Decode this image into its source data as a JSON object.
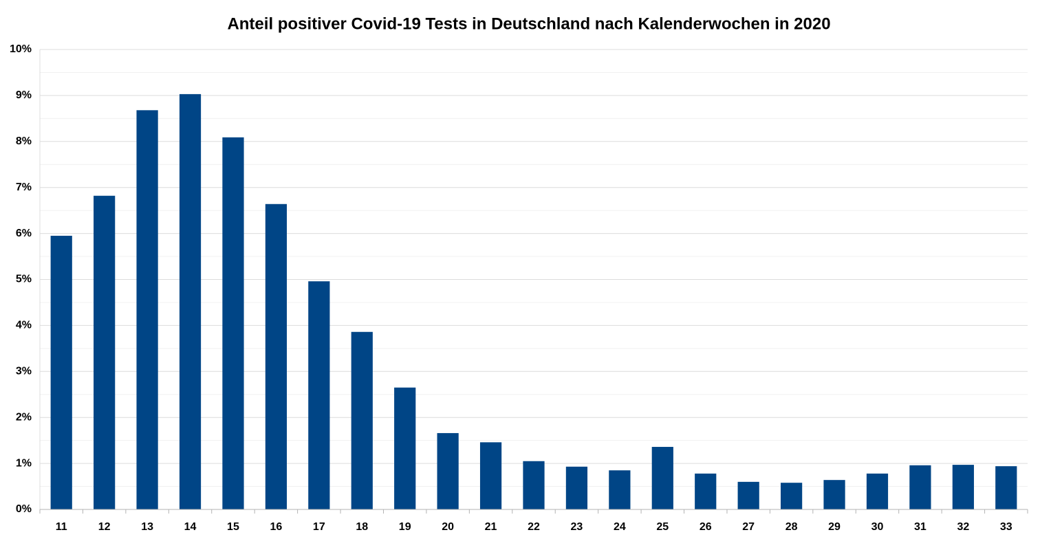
{
  "chart_data": {
    "type": "bar",
    "title": "Anteil positiver Covid-19 Tests in Deutschland nach Kalenderwochen in 2020",
    "categories": [
      "11",
      "12",
      "13",
      "14",
      "15",
      "16",
      "17",
      "18",
      "19",
      "20",
      "21",
      "22",
      "23",
      "24",
      "25",
      "26",
      "27",
      "28",
      "29",
      "30",
      "31",
      "32",
      "33"
    ],
    "values": [
      5.95,
      6.82,
      8.68,
      9.03,
      8.09,
      6.64,
      4.96,
      3.86,
      2.65,
      1.66,
      1.46,
      1.05,
      0.93,
      0.85,
      1.36,
      0.78,
      0.6,
      0.58,
      0.64,
      0.78,
      0.96,
      0.97,
      0.94
    ],
    "color": "#004586",
    "ylim": [
      0,
      10
    ],
    "yticks": [
      {
        "value": 0,
        "label": "0%"
      },
      {
        "value": 1,
        "label": "1%"
      },
      {
        "value": 2,
        "label": "2%"
      },
      {
        "value": 3,
        "label": "3%"
      },
      {
        "value": 4,
        "label": "4%"
      },
      {
        "value": 5,
        "label": "5%"
      },
      {
        "value": 6,
        "label": "6%"
      },
      {
        "value": 7,
        "label": "7%"
      },
      {
        "value": 8,
        "label": "8%"
      },
      {
        "value": 9,
        "label": "9%"
      },
      {
        "value": 10,
        "label": "10%"
      }
    ],
    "minor_yticks": [
      0.5,
      1.5,
      2.5,
      3.5,
      4.5,
      5.5,
      6.5,
      7.5,
      8.5,
      9.5
    ],
    "grid": true
  }
}
